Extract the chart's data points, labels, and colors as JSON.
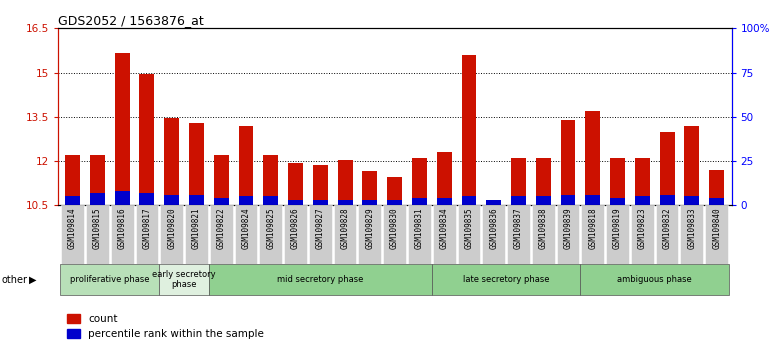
{
  "title": "GDS2052 / 1563876_at",
  "samples": [
    "GSM109814",
    "GSM109815",
    "GSM109816",
    "GSM109817",
    "GSM109820",
    "GSM109821",
    "GSM109822",
    "GSM109824",
    "GSM109825",
    "GSM109826",
    "GSM109827",
    "GSM109828",
    "GSM109829",
    "GSM109830",
    "GSM109831",
    "GSM109834",
    "GSM109835",
    "GSM109836",
    "GSM109837",
    "GSM109838",
    "GSM109839",
    "GSM109818",
    "GSM109819",
    "GSM109823",
    "GSM109832",
    "GSM109833",
    "GSM109840"
  ],
  "count_values": [
    12.2,
    12.2,
    15.65,
    14.95,
    13.45,
    13.3,
    12.2,
    13.2,
    12.2,
    11.95,
    11.85,
    12.05,
    11.65,
    11.45,
    12.1,
    12.3,
    15.6,
    10.6,
    12.1,
    12.1,
    13.4,
    13.7,
    12.1,
    12.1,
    13.0,
    13.2,
    11.7
  ],
  "percentile_values": [
    5,
    7,
    8,
    7,
    6,
    6,
    4,
    5,
    5,
    3,
    3,
    3,
    3,
    3,
    4,
    4,
    5,
    3,
    5,
    5,
    6,
    6,
    4,
    5,
    6,
    5,
    4
  ],
  "base": 10.5,
  "ylim_left": [
    10.5,
    16.5
  ],
  "ylim_right": [
    0,
    100
  ],
  "yticks_left": [
    10.5,
    12.0,
    13.5,
    15.0,
    16.5
  ],
  "yticks_right": [
    0,
    25,
    50,
    75,
    100
  ],
  "ytick_labels_left": [
    "10.5",
    "12",
    "13.5",
    "15",
    "16.5"
  ],
  "ytick_labels_right": [
    "0",
    "25",
    "50",
    "75",
    "100%"
  ],
  "bar_color_red": "#CC1100",
  "bar_color_blue": "#0000CC",
  "phases": [
    {
      "label": "proliferative phase",
      "start": 0,
      "end": 4,
      "color": "#b8e0b8"
    },
    {
      "label": "early secretory\nphase",
      "start": 4,
      "end": 6,
      "color": "#dff0df"
    },
    {
      "label": "mid secretory phase",
      "start": 6,
      "end": 15,
      "color": "#90d090"
    },
    {
      "label": "late secretory phase",
      "start": 15,
      "end": 21,
      "color": "#90d090"
    },
    {
      "label": "ambiguous phase",
      "start": 21,
      "end": 27,
      "color": "#90d090"
    }
  ],
  "other_label": "other",
  "legend_count": "count",
  "legend_percentile": "percentile rank within the sample",
  "bg_color": "#ffffff",
  "tick_bg": "#cccccc"
}
